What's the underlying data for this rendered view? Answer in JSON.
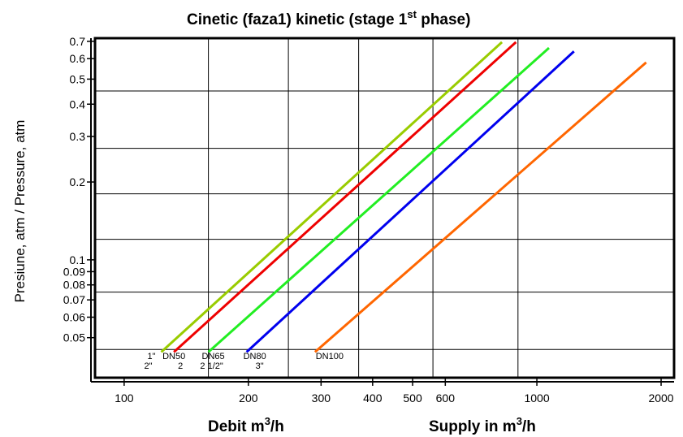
{
  "chart_data": {
    "type": "line",
    "title_main": "Cinetic (faza1)  kinetic (stage 1",
    "title_sup": "st",
    "title_end": " phase)",
    "xlabel_left": "Debit m",
    "xlabel_left_sup": "3",
    "xlabel_left_end": "/h",
    "xlabel_right": "Supply in m",
    "xlabel_right_sup": "3",
    "xlabel_right_end": "/h",
    "ylabel": "Presiune, atm / Pressure, atm",
    "x_scale": "log",
    "y_scale": "log",
    "xlim": [
      85,
      2150
    ],
    "ylim": [
      0.035,
      0.72
    ],
    "grid": true,
    "x_ticks": [
      {
        "value": 100,
        "label": "100"
      },
      {
        "value": 200,
        "label": "200"
      },
      {
        "value": 300,
        "label": "300"
      },
      {
        "value": 400,
        "label": "400"
      },
      {
        "value": 500,
        "label": "500"
      },
      {
        "value": 600,
        "label": "600"
      },
      {
        "value": 1000,
        "label": "1000"
      },
      {
        "value": 2000,
        "label": "2000"
      }
    ],
    "y_ticks": [
      {
        "value": 0.05,
        "label": "0.05"
      },
      {
        "value": 0.06,
        "label": "0.06"
      },
      {
        "value": 0.07,
        "label": "0.07"
      },
      {
        "value": 0.08,
        "label": "0.08"
      },
      {
        "value": 0.09,
        "label": "0.09"
      },
      {
        "value": 0.1,
        "label": "0.1"
      },
      {
        "value": 0.2,
        "label": "0.2"
      },
      {
        "value": 0.3,
        "label": "0.3"
      },
      {
        "value": 0.4,
        "label": "0.4"
      },
      {
        "value": 0.5,
        "label": "0.5"
      },
      {
        "value": 0.6,
        "label": "0.6"
      },
      {
        "value": 0.7,
        "label": "0.7"
      }
    ],
    "series": [
      {
        "name": "1\" 2\"",
        "color": "#99cc00",
        "x": [
          123,
          823
        ],
        "y": [
          0.044,
          0.695
        ]
      },
      {
        "name": "DN50",
        "color": "#ee0000",
        "x": [
          132,
          890
        ],
        "y": [
          0.044,
          0.695
        ]
      },
      {
        "name": "DN65 2 1/2\"",
        "color": "#22ee22",
        "x": [
          160,
          1070
        ],
        "y": [
          0.044,
          0.66
        ]
      },
      {
        "name": "DN80 3\"",
        "color": "#0000ee",
        "x": [
          198,
          1230
        ],
        "y": [
          0.044,
          0.64
        ]
      },
      {
        "name": "DN100",
        "color": "#ff6600",
        "x": [
          290,
          1840
        ],
        "y": [
          0.044,
          0.58
        ]
      }
    ],
    "series_labels": [
      {
        "line1": "1\"",
        "line2": "2\""
      },
      {
        "line1": "DN50",
        "line2": "2"
      },
      {
        "line1": "DN65",
        "line2": "2 1/2\""
      },
      {
        "line1": "DN80",
        "line2": "3\""
      },
      {
        "line1": "DN100",
        "line2": ""
      }
    ]
  }
}
